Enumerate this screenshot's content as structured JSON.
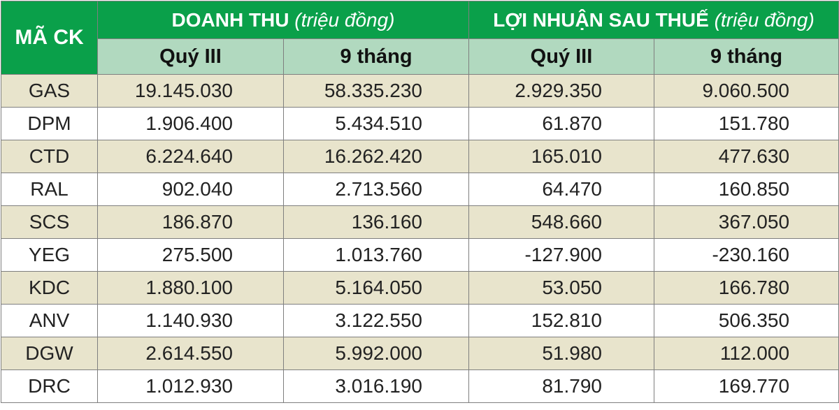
{
  "table": {
    "code_header": "MÃ CK",
    "groups": [
      {
        "title": "DOANH THU",
        "unit": "(triệu đồng)"
      },
      {
        "title": "LỢI NHUẬN SAU THUẾ",
        "unit": "(triệu đồng)"
      }
    ],
    "sub_headers": [
      "Quý III",
      "9 tháng",
      "Quý III",
      "9 tháng"
    ],
    "rows": [
      {
        "code": "GAS",
        "values": [
          "19.145.030",
          "58.335.230",
          "2.929.350",
          "9.060.500"
        ]
      },
      {
        "code": "DPM",
        "values": [
          "1.906.400",
          "5.434.510",
          "61.870",
          "151.780"
        ]
      },
      {
        "code": "CTD",
        "values": [
          "6.224.640",
          "16.262.420",
          "165.010",
          "477.630"
        ]
      },
      {
        "code": "RAL",
        "values": [
          "902.040",
          "2.713.560",
          "64.470",
          "160.850"
        ]
      },
      {
        "code": "SCS",
        "values": [
          "186.870",
          "136.160",
          "548.660",
          "367.050"
        ]
      },
      {
        "code": "YEG",
        "values": [
          "275.500",
          "1.013.760",
          "-127.900",
          "-230.160"
        ]
      },
      {
        "code": "KDC",
        "values": [
          "1.880.100",
          "5.164.050",
          "53.050",
          "166.780"
        ]
      },
      {
        "code": "ANV",
        "values": [
          "1.140.930",
          "3.122.550",
          "152.810",
          "506.350"
        ]
      },
      {
        "code": "DGW",
        "values": [
          "2.614.550",
          "5.992.000",
          "51.980",
          "112.000"
        ]
      },
      {
        "code": "DRC",
        "values": [
          "1.012.930",
          "3.016.190",
          "81.790",
          "169.770"
        ]
      }
    ]
  },
  "colors": {
    "header_green": "#0aa04a",
    "subheader_green": "#b1d9bf",
    "row_shade": "#e8e4cc",
    "border": "#7f7f7f"
  }
}
